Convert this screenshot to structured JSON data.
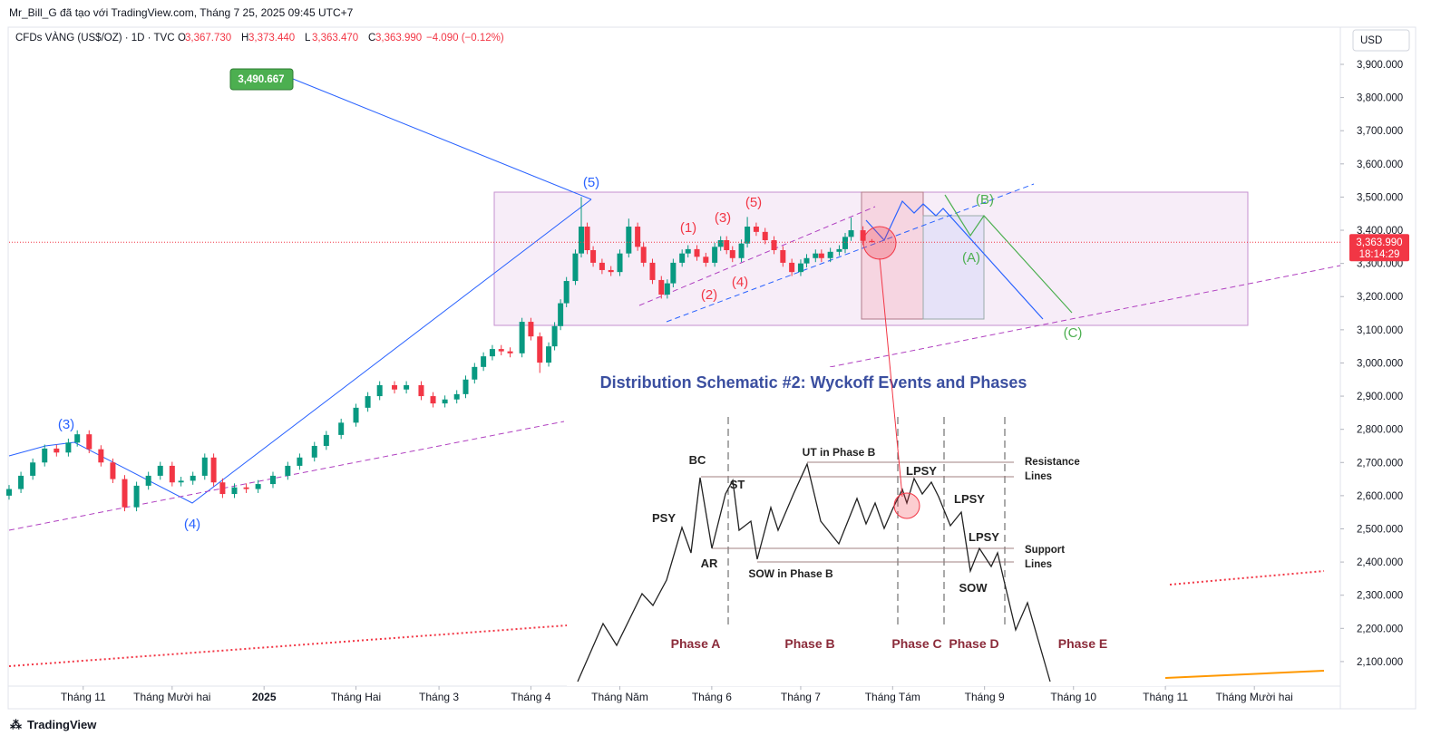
{
  "header": {
    "attribution": "Mr_Bill_G đã tạo với TradingView.com, Tháng 7 25, 2025 09:45 UTC+7",
    "symbol": "CFDs VÀNG (US$/OZ) · 1D · TVC",
    "ohlc": [
      {
        "key": "O",
        "value": "3,367.730"
      },
      {
        "key": "H",
        "value": "3,373.440"
      },
      {
        "key": "L",
        "value": "3,363.470"
      },
      {
        "key": "C",
        "value": "3,363.990"
      }
    ],
    "change": "−4.090 (−0.12%)",
    "currency": "USD",
    "footer": "TradingView"
  },
  "chart_data": {
    "type": "candlestick",
    "up_color": "#089981",
    "down_color": "#f23645",
    "x": [
      6,
      10,
      14,
      18,
      22,
      26,
      29,
      33,
      37,
      41,
      45,
      49,
      53,
      57,
      61,
      64,
      68,
      72,
      75,
      78,
      82,
      86,
      90,
      95,
      100,
      104,
      109,
      113,
      118,
      123,
      127,
      131,
      136,
      140,
      145,
      149,
      153,
      157,
      160,
      163,
      166,
      169,
      172,
      175,
      179,
      182,
      185,
      188,
      190,
      192,
      194,
      197,
      199,
      201,
      203,
      206,
      209,
      212,
      215,
      218,
      220,
      223,
      226,
      228,
      230,
      233,
      235,
      238,
      241,
      244,
      246,
      248,
      250,
      253,
      255,
      258,
      261,
      264,
      267,
      270,
      273,
      275,
      278,
      280,
      283,
      286,
      288,
      290,
      294,
      297
    ],
    "open": [
      2600,
      2620,
      2660,
      2700,
      2742,
      2730,
      2760,
      2785,
      2740,
      2700,
      2650,
      2565,
      2630,
      2660,
      2690,
      2640,
      2645,
      2660,
      2715,
      2640,
      2605,
      2625,
      2620,
      2635,
      2660,
      2690,
      2715,
      2750,
      2783,
      2820,
      2865,
      2900,
      2933,
      2920,
      2933,
      2900,
      2878,
      2890,
      2906,
      2950,
      2988,
      3020,
      3042,
      3035,
      3029,
      3124,
      3080,
      3001,
      3050,
      3111,
      3180,
      3247,
      3330,
      3411,
      3340,
      3302,
      3280,
      3274,
      3330,
      3411,
      3350,
      3302,
      3250,
      3206,
      3240,
      3302,
      3330,
      3343,
      3320,
      3302,
      3350,
      3370,
      3340,
      3316,
      3360,
      3411,
      3395,
      3370,
      3340,
      3302,
      3274,
      3300,
      3316,
      3330,
      3316,
      3335,
      3343,
      3380,
      3400,
      3367.73
    ],
    "high": [
      2632,
      2672,
      2712,
      2754,
      2754,
      2772,
      2797,
      2797,
      2752,
      2712,
      2662,
      2642,
      2672,
      2702,
      2702,
      2657,
      2672,
      2727,
      2727,
      2652,
      2637,
      2637,
      2647,
      2672,
      2702,
      2727,
      2762,
      2795,
      2832,
      2877,
      2912,
      2945,
      2945,
      2945,
      2945,
      2912,
      2902,
      2918,
      2962,
      3000,
      3032,
      3054,
      3054,
      3047,
      3136,
      3136,
      3092,
      3062,
      3123,
      3192,
      3259,
      3342,
      3500,
      3423,
      3352,
      3314,
      3292,
      3342,
      3435,
      3423,
      3362,
      3314,
      3262,
      3252,
      3314,
      3342,
      3355,
      3355,
      3332,
      3362,
      3382,
      3382,
      3352,
      3372,
      3440,
      3423,
      3407,
      3382,
      3352,
      3314,
      3312,
      3328,
      3342,
      3342,
      3347,
      3355,
      3392,
      3438,
      3412,
      3373.44
    ],
    "low": [
      2588,
      2608,
      2648,
      2688,
      2718,
      2718,
      2748,
      2728,
      2688,
      2638,
      2553,
      2553,
      2618,
      2648,
      2628,
      2628,
      2633,
      2648,
      2628,
      2593,
      2593,
      2608,
      2608,
      2623,
      2648,
      2678,
      2703,
      2738,
      2771,
      2808,
      2853,
      2888,
      2908,
      2908,
      2888,
      2866,
      2866,
      2878,
      2894,
      2938,
      2976,
      3008,
      3023,
      3017,
      3017,
      3068,
      2970,
      2989,
      3038,
      3099,
      3168,
      3235,
      3318,
      3328,
      3290,
      3268,
      3262,
      3262,
      3318,
      3338,
      3290,
      3238,
      3194,
      3194,
      3228,
      3290,
      3318,
      3308,
      3290,
      3290,
      3338,
      3328,
      3304,
      3304,
      3348,
      3383,
      3358,
      3328,
      3290,
      3262,
      3262,
      3288,
      3304,
      3304,
      3304,
      3323,
      3331,
      3368,
      3356,
      3363.47
    ],
    "close": [
      2620,
      2660,
      2700,
      2742,
      2730,
      2760,
      2785,
      2740,
      2700,
      2650,
      2565,
      2630,
      2660,
      2690,
      2640,
      2645,
      2660,
      2715,
      2640,
      2605,
      2625,
      2620,
      2635,
      2660,
      2690,
      2715,
      2750,
      2783,
      2820,
      2865,
      2900,
      2933,
      2920,
      2933,
      2900,
      2878,
      2890,
      2906,
      2950,
      2988,
      3020,
      3042,
      3035,
      3029,
      3124,
      3080,
      3001,
      3050,
      3111,
      3180,
      3247,
      3330,
      3411,
      3340,
      3302,
      3280,
      3274,
      3330,
      3411,
      3350,
      3302,
      3250,
      3206,
      3240,
      3302,
      3330,
      3343,
      3320,
      3302,
      3350,
      3370,
      3340,
      3316,
      3360,
      3411,
      3395,
      3370,
      3340,
      3302,
      3274,
      3300,
      3316,
      3330,
      3316,
      3335,
      3343,
      3380,
      3400,
      3368.08,
      3363.99
    ],
    "xlim": [
      6,
      455
    ],
    "xticks": [
      {
        "value": 31,
        "label": "Tháng 11"
      },
      {
        "value": 61,
        "label": "Tháng Mười hai"
      },
      {
        "value": 92,
        "label": "2025"
      },
      {
        "value": 123,
        "label": "Tháng Hai"
      },
      {
        "value": 151,
        "label": "Tháng 3"
      },
      {
        "value": 182,
        "label": "Tháng 4"
      },
      {
        "value": 212,
        "label": "Tháng Năm"
      },
      {
        "value": 243,
        "label": "Tháng 6"
      },
      {
        "value": 273,
        "label": "Tháng 7"
      },
      {
        "value": 304,
        "label": "Tháng Tám"
      },
      {
        "value": 335,
        "label": "Tháng 9"
      },
      {
        "value": 365,
        "label": "Tháng 10"
      },
      {
        "value": 396,
        "label": "Tháng 11"
      },
      {
        "value": 426,
        "label": "Tháng Mười hai"
      }
    ],
    "ylim": [
      2026,
      4012
    ],
    "yticks": [
      {
        "value": 2100,
        "label": "2,100.000"
      },
      {
        "value": 2200,
        "label": "2,200.000"
      },
      {
        "value": 2300,
        "label": "2,300.000"
      },
      {
        "value": 2400,
        "label": "2,400.000"
      },
      {
        "value": 2500,
        "label": "2,500.000"
      },
      {
        "value": 2600,
        "label": "2,600.000"
      },
      {
        "value": 2700,
        "label": "2,700.000"
      },
      {
        "value": 2800,
        "label": "2,800.000"
      },
      {
        "value": 2900,
        "label": "2,900.000"
      },
      {
        "value": 3000,
        "label": "3,000.000"
      },
      {
        "value": 3100,
        "label": "3,100.000"
      },
      {
        "value": 3200,
        "label": "3,200.000"
      },
      {
        "value": 3300,
        "label": "3,300.000"
      },
      {
        "value": 3400,
        "label": "3,400.000"
      },
      {
        "value": 3500,
        "label": "3,500.000"
      },
      {
        "value": 3600,
        "label": "3,600.000"
      },
      {
        "value": 3700,
        "label": "3,700.000"
      },
      {
        "value": 3800,
        "label": "3,800.000"
      },
      {
        "value": 3900,
        "label": "3,900.000"
      }
    ],
    "last_price": {
      "value": 3363.99,
      "label": "3,363.990"
    },
    "countdown": "18:14:29",
    "price_note": {
      "value": 3490.667,
      "label": "3,490.667"
    },
    "wave_labels": [
      "(5)",
      "(3)",
      "(4)",
      "(1)",
      "(3)",
      "(5)",
      "(2)",
      "(4)",
      "(B)",
      "(A)",
      "(C)"
    ]
  },
  "wyckoff": {
    "title": "Distribution Schematic #2: Wyckoff Events and Phases",
    "events": [
      "BC",
      "PSY",
      "AR",
      "ST",
      "UT in Phase B",
      "SOW in Phase B",
      "LPSY",
      "LPSY",
      "LPSY",
      "SOW"
    ],
    "lines": [
      "Resistance",
      "Lines",
      "Support",
      "Lines"
    ],
    "phases": [
      "Phase A",
      "Phase B",
      "Phase C",
      "Phase D",
      "Phase E"
    ]
  }
}
